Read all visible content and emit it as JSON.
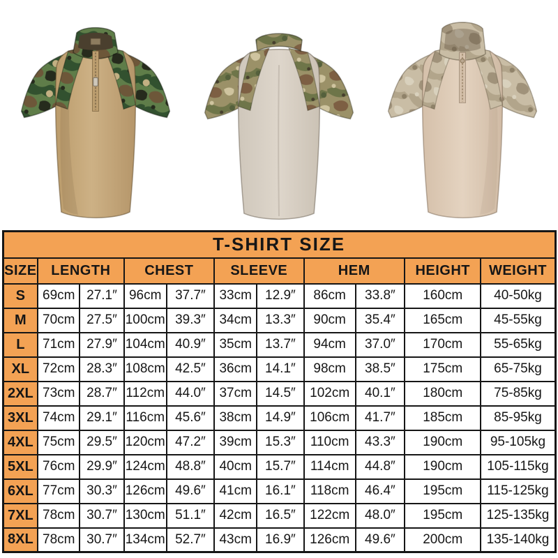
{
  "page": {
    "background": "#ffffff"
  },
  "products": [
    {
      "id": "woodland-front",
      "label": "Tan combat shirt with woodland camo raglan sleeves and zip collar, front view"
    },
    {
      "id": "multicam-back",
      "label": "Beige combat shirt with multicam raglan sleeves and collar, back view"
    },
    {
      "id": "desert-front",
      "label": "Sand combat shirt with desert camo raglan sleeves and zip collar, front view"
    }
  ],
  "size_chart": {
    "title": "T-SHIRT SIZE",
    "colors": {
      "accent": "#F3A254",
      "border": "#161616",
      "cell_bg": "#FFFFFF",
      "text": "#161616"
    },
    "header": [
      {
        "label": "SIZE",
        "span": 1
      },
      {
        "label": "LENGTH",
        "span": 2
      },
      {
        "label": "CHEST",
        "span": 2
      },
      {
        "label": "SLEEVE",
        "span": 2
      },
      {
        "label": "HEM",
        "span": 2
      },
      {
        "label": "HEIGHT",
        "span": 1
      },
      {
        "label": "WEIGHT",
        "span": 1
      }
    ],
    "rows": [
      [
        "S",
        "69cm",
        "27.1″",
        "96cm",
        "37.7″",
        "33cm",
        "12.9″",
        "86cm",
        "33.8″",
        "160cm",
        "40-50kg"
      ],
      [
        "M",
        "70cm",
        "27.5″",
        "100cm",
        "39.3″",
        "34cm",
        "13.3″",
        "90cm",
        "35.4″",
        "165cm",
        "45-55kg"
      ],
      [
        "L",
        "71cm",
        "27.9″",
        "104cm",
        "40.9″",
        "35cm",
        "13.7″",
        "94cm",
        "37.0″",
        "170cm",
        "55-65kg"
      ],
      [
        "XL",
        "72cm",
        "28.3″",
        "108cm",
        "42.5″",
        "36cm",
        "14.1″",
        "98cm",
        "38.5″",
        "175cm",
        "65-75kg"
      ],
      [
        "2XL",
        "73cm",
        "28.7″",
        "112cm",
        "44.0″",
        "37cm",
        "14.5″",
        "102cm",
        "40.1″",
        "180cm",
        "75-85kg"
      ],
      [
        "3XL",
        "74cm",
        "29.1″",
        "116cm",
        "45.6″",
        "38cm",
        "14.9″",
        "106cm",
        "41.7″",
        "185cm",
        "85-95kg"
      ],
      [
        "4XL",
        "75cm",
        "29.5″",
        "120cm",
        "47.2″",
        "39cm",
        "15.3″",
        "110cm",
        "43.3″",
        "190cm",
        "95-105kg"
      ],
      [
        "5XL",
        "76cm",
        "29.9″",
        "124cm",
        "48.8″",
        "40cm",
        "15.7″",
        "114cm",
        "44.8″",
        "190cm",
        "105-115kg"
      ],
      [
        "6XL",
        "77cm",
        "30.3″",
        "126cm",
        "49.6″",
        "41cm",
        "16.1″",
        "118cm",
        "46.4″",
        "195cm",
        "115-125kg"
      ],
      [
        "7XL",
        "78cm",
        "30.7″",
        "130cm",
        "51.1″",
        "42cm",
        "16.5″",
        "122cm",
        "48.0″",
        "195cm",
        "125-135kg"
      ],
      [
        "8XL",
        "78cm",
        "30.7″",
        "134cm",
        "52.7″",
        "43cm",
        "16.9″",
        "126cm",
        "49.6″",
        "200cm",
        "135-140kg"
      ]
    ]
  }
}
